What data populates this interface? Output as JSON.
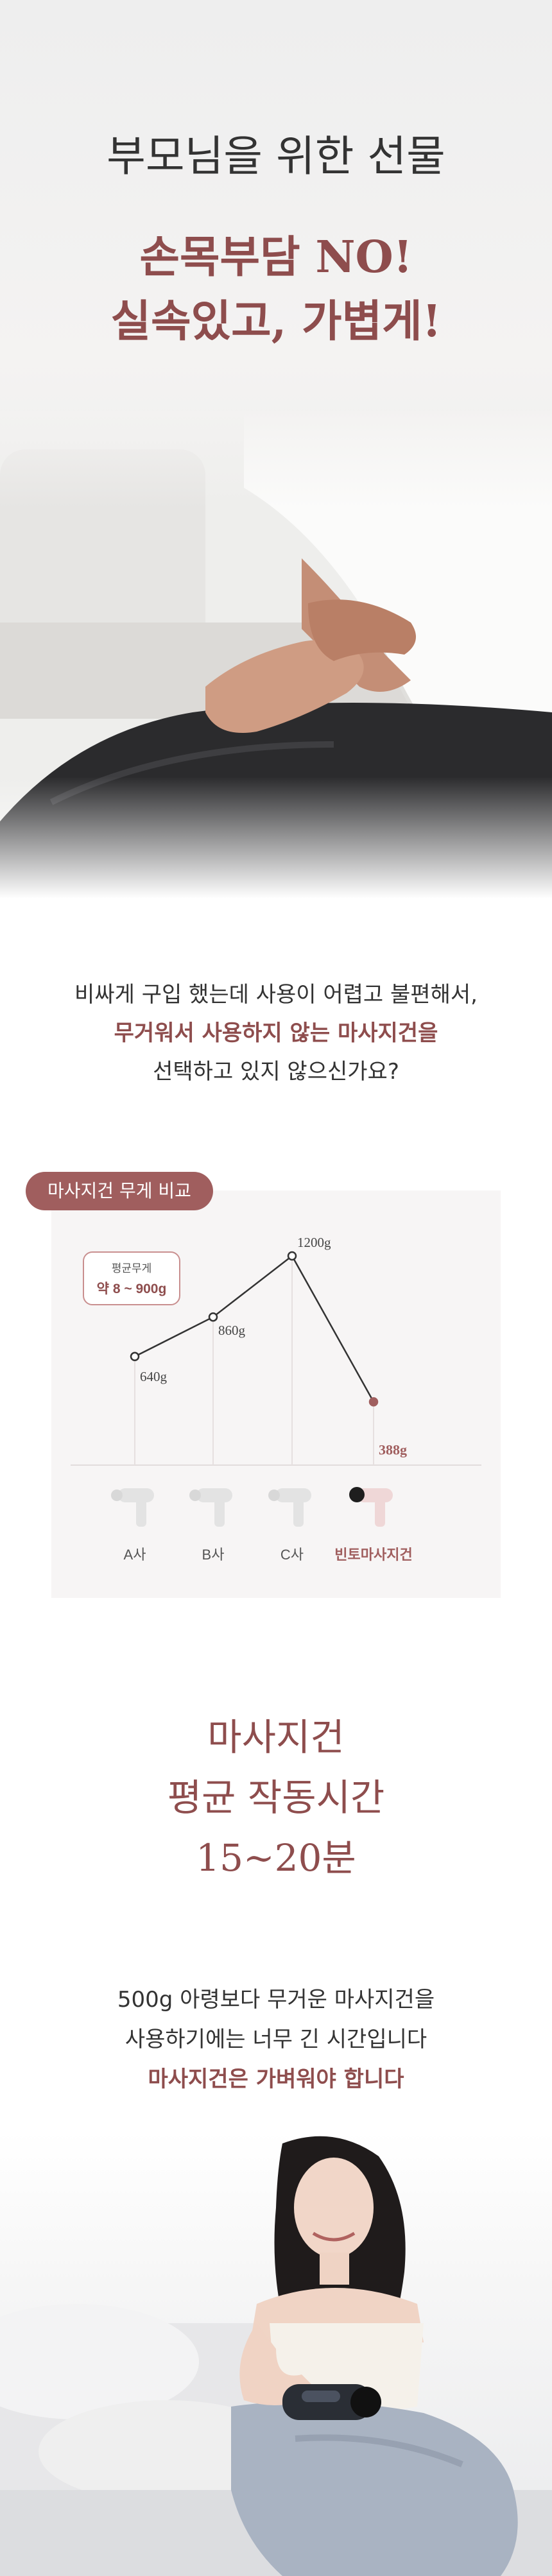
{
  "hero": {
    "subtitle": "부모님을 위한 선물",
    "headline_1": "손목부담 NO!",
    "headline_2": "실속있고, 가볍게!"
  },
  "intro": {
    "line_1": "비싸게 구입 했는데 사용이 어렵고 불편해서,",
    "line_2": "무거워서 사용하지 않는 마사지건을",
    "line_3": "선택하고 있지 않으신가요?"
  },
  "comparison": {
    "tag": "마사지건 무게 비교",
    "avg_label": "평균무게",
    "avg_value": "약 8 ~ 900g",
    "accent_color": "#a05e5e"
  },
  "chart_data": {
    "type": "line",
    "categories": [
      "A사",
      "B사",
      "C사",
      "빈토마사지건"
    ],
    "values": [
      640,
      860,
      1200,
      388
    ],
    "value_labels": [
      "640g",
      "860g",
      "1200g",
      "388g"
    ]
  },
  "section2": {
    "title_1": "마사지건",
    "title_2": "평균 작동시간",
    "title_3": "15~20분"
  },
  "text2": {
    "line_1": "500g 아령보다 무거운 마사지건을",
    "line_2": "사용하기에는 너무 긴 시간입니다",
    "line_3": "마사지건은 가벼워야 합니다"
  }
}
